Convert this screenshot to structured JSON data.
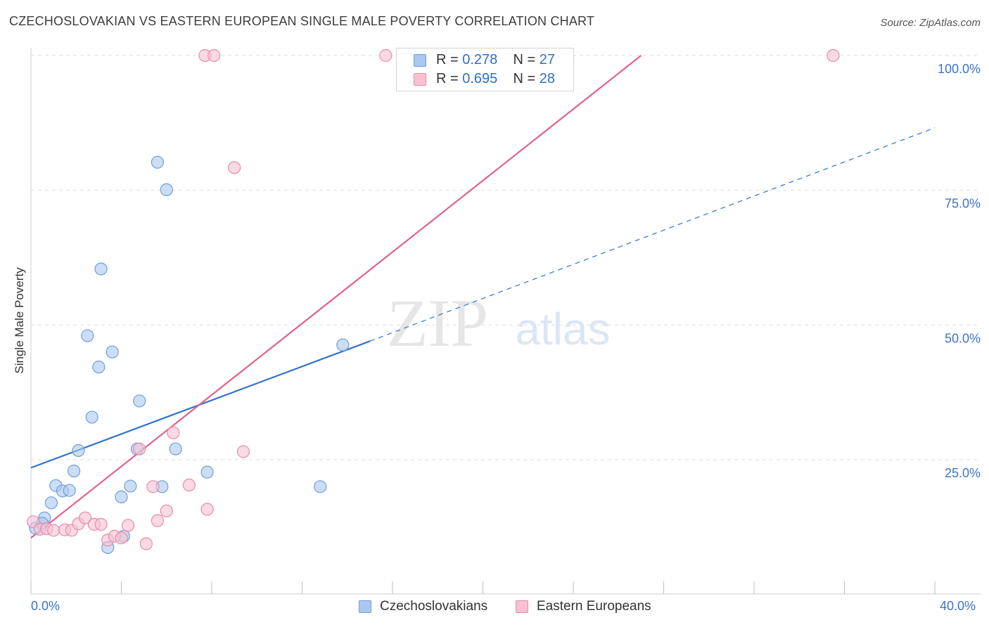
{
  "title": "CZECHOSLOVAKIAN VS EASTERN EUROPEAN SINGLE MALE POVERTY CORRELATION CHART",
  "source": "Source: ZipAtlas.com",
  "watermark": {
    "zip": "ZIP",
    "atlas": "atlas"
  },
  "legend": {
    "rows": [
      {
        "r_label": "R = ",
        "r_value": "0.278",
        "n_label": "N = ",
        "n_value": "27",
        "color": "#aac8ef",
        "border": "#6f9fd8"
      },
      {
        "r_label": "R = ",
        "r_value": "0.695",
        "n_label": "N = ",
        "n_value": "28",
        "color": "#f7c2d2",
        "border": "#e88aa8"
      }
    ]
  },
  "bottom_legend": [
    {
      "label": "Czechoslovakians",
      "color": "#aac8ef",
      "border": "#6f9fd8"
    },
    {
      "label": "Eastern Europeans",
      "color": "#f7c2d2",
      "border": "#e88aa8"
    }
  ],
  "x_axis": {
    "min_label": "0.0%",
    "max_label": "40.0%"
  },
  "chart_data": {
    "type": "scatter",
    "title": "CZECHOSLOVAKIAN VS EASTERN EUROPEAN SINGLE MALE POVERTY CORRELATION CHART",
    "xlabel": "",
    "ylabel": "Single Male Poverty",
    "xlim": [
      0,
      40
    ],
    "ylim": [
      0,
      100
    ],
    "y_ticks": [
      25,
      50,
      75,
      100
    ],
    "y_tick_labels": [
      "25.0%",
      "50.0%",
      "75.0%",
      "100.0%"
    ],
    "grid": true,
    "series": [
      {
        "name": "Czechoslovakians",
        "color": "#6f9fd8",
        "fill": "#aac8ef",
        "line_color": "#2f72d0",
        "trend": {
          "x0": 0,
          "y0": 23.5,
          "x1": 15.0,
          "y1": 47.0,
          "dash_to_x": 40,
          "dash_to_y": 86.6
        },
        "points": [
          [
            0.2,
            12.3
          ],
          [
            0.6,
            14.2
          ],
          [
            0.9,
            17.0
          ],
          [
            1.1,
            20.2
          ],
          [
            1.4,
            19.2
          ],
          [
            1.7,
            19.3
          ],
          [
            1.9,
            22.9
          ],
          [
            2.1,
            26.7
          ],
          [
            2.7,
            32.9
          ],
          [
            2.5,
            48.0
          ],
          [
            3.0,
            42.2
          ],
          [
            3.1,
            60.4
          ],
          [
            3.6,
            45.0
          ],
          [
            3.4,
            8.7
          ],
          [
            4.0,
            18.1
          ],
          [
            4.1,
            10.8
          ],
          [
            4.4,
            20.1
          ],
          [
            4.8,
            35.9
          ],
          [
            4.7,
            27.0
          ],
          [
            5.6,
            80.2
          ],
          [
            5.8,
            20.0
          ],
          [
            6.0,
            75.1
          ],
          [
            6.4,
            27.0
          ],
          [
            7.8,
            22.7
          ],
          [
            12.8,
            20.0
          ],
          [
            13.8,
            46.3
          ],
          [
            0.5,
            13.2
          ]
        ]
      },
      {
        "name": "Eastern Europeans",
        "color": "#e88aa8",
        "fill": "#f7c2d2",
        "line_color": "#e0628c",
        "trend": {
          "x0": 0,
          "y0": 10.5,
          "x1": 27.0,
          "y1": 100.0
        },
        "points": [
          [
            0.1,
            13.5
          ],
          [
            0.4,
            12.1
          ],
          [
            0.7,
            12.2
          ],
          [
            1.0,
            11.9
          ],
          [
            1.5,
            12.0
          ],
          [
            1.8,
            11.9
          ],
          [
            2.1,
            13.1
          ],
          [
            2.4,
            14.2
          ],
          [
            2.8,
            13.0
          ],
          [
            3.1,
            13.0
          ],
          [
            3.4,
            10.1
          ],
          [
            3.7,
            10.8
          ],
          [
            4.0,
            10.5
          ],
          [
            4.3,
            12.8
          ],
          [
            4.8,
            27.0
          ],
          [
            5.1,
            9.4
          ],
          [
            5.4,
            20.0
          ],
          [
            5.6,
            13.7
          ],
          [
            6.0,
            15.5
          ],
          [
            6.3,
            30.0
          ],
          [
            7.0,
            20.3
          ],
          [
            7.7,
            100.0
          ],
          [
            8.1,
            100.0
          ],
          [
            7.8,
            15.8
          ],
          [
            9.0,
            79.2
          ],
          [
            9.4,
            26.5
          ],
          [
            15.7,
            100.0
          ],
          [
            35.5,
            100.0
          ]
        ]
      }
    ]
  }
}
